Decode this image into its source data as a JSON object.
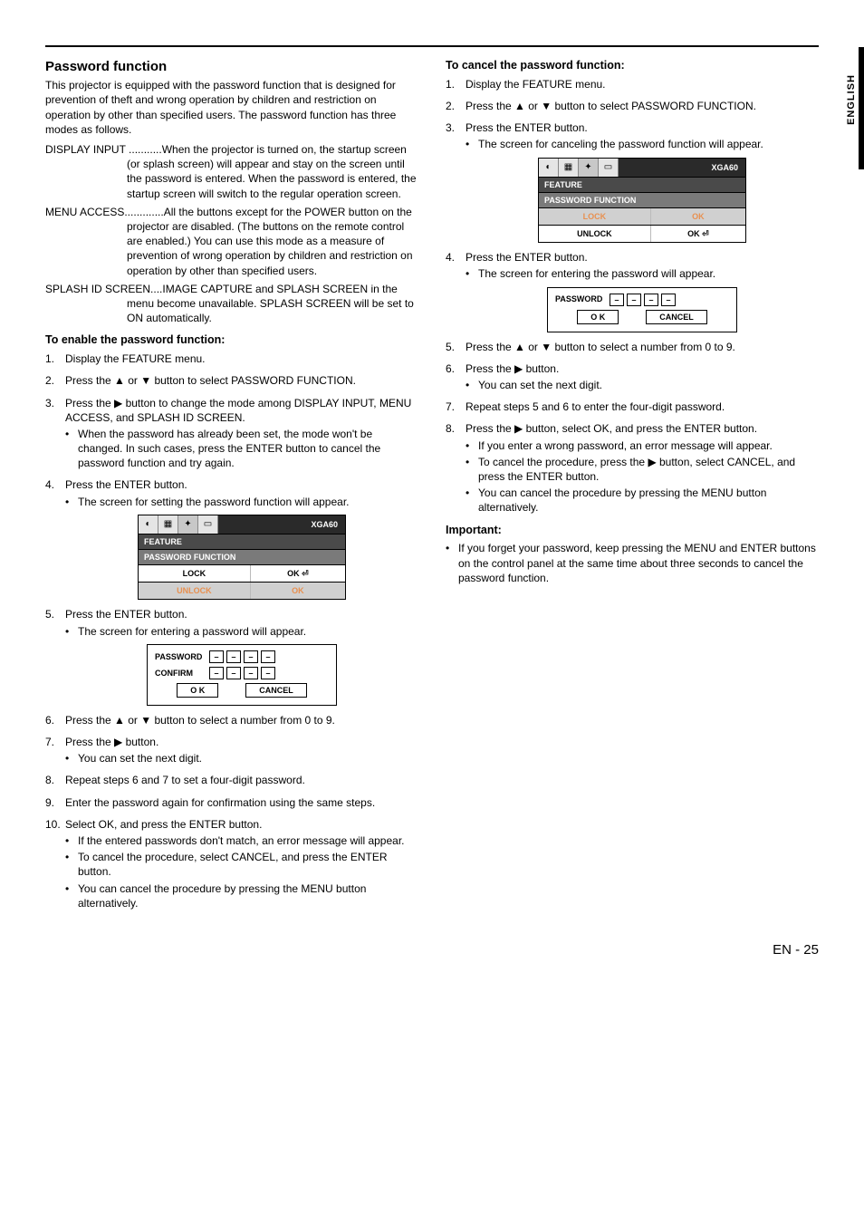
{
  "sideTab": "ENGLISH",
  "footer": "EN - 25",
  "left": {
    "heading": "Password function",
    "intro": "This projector is equipped with the password function that is designed for prevention of theft and wrong operation by children and restriction on operation by other than specified users. The password function has three modes as follows.",
    "mode1": "DISPLAY INPUT ...........When the projector is turned on, the startup screen (or splash screen) will appear and stay on the screen until the password is entered. When the password is entered, the startup screen will switch to the regular operation screen.",
    "mode2": "MENU ACCESS.............All the buttons except for the POWER button on the projector are disabled. (The buttons on the remote control are enabled.) You can use this mode as a measure of prevention of wrong operation by children and restriction on operation by other than specified users.",
    "mode3": "SPLASH ID SCREEN....IMAGE CAPTURE and SPLASH SCREEN in the menu become unavailable. SPLASH SCREEN will be set to ON automatically.",
    "enableTitle": "To enable the password function:",
    "s1": "Display the FEATURE menu.",
    "s2": "Press the ▲ or ▼ button to select PASSWORD FUNCTION.",
    "s3": "Press the ▶ button to change the mode among DISPLAY INPUT, MENU ACCESS, and SPLASH ID SCREEN.",
    "s3b": "When the password has already been set, the mode won't be changed. In such cases, press the ENTER button to cancel the password function and try again.",
    "s4": "Press the ENTER button.",
    "s4b": "The screen for setting the password function will appear.",
    "s5": "Press the ENTER button.",
    "s5b": "The screen for entering a password will appear.",
    "s6": "Press the ▲ or ▼ button to select a number from 0 to 9.",
    "s7": "Press the ▶ button.",
    "s7b": "You can set the next digit.",
    "s8": "Repeat steps 6 and 7 to set a four-digit password.",
    "s9": "Enter the password again for confirmation using the same steps.",
    "s10": "Select OK, and press the ENTER button.",
    "s10a": "If the entered passwords don't match, an error message will appear.",
    "s10b": "To cancel the procedure, select CANCEL, and press the ENTER button.",
    "s10c": "You can cancel the procedure by pressing the MENU button alternatively."
  },
  "right": {
    "cancelTitle": "To cancel the password function:",
    "c1": "Display the FEATURE menu.",
    "c2": "Press the ▲ or ▼ button to select PASSWORD FUNCTION.",
    "c3": "Press the ENTER button.",
    "c3b": "The screen for canceling the password function will appear.",
    "c4": "Press the ENTER button.",
    "c4b": "The screen for entering the password will appear.",
    "c5": "Press the ▲ or ▼ button to select a number from 0 to 9.",
    "c6": "Press the ▶ button.",
    "c6b": "You can set the next digit.",
    "c7": "Repeat steps 5 and 6 to enter the four-digit password.",
    "c8": "Press the ▶ button, select OK, and press the ENTER button.",
    "c8a": "If you enter a wrong password, an error message will appear.",
    "c8b": "To cancel the procedure, press the ▶ button, select CANCEL, and press the ENTER button.",
    "c8c": "You can cancel the procedure by pressing the MENU button alternatively.",
    "impTitle": "Important:",
    "imp1": "If you forget your password, keep pressing the MENU and ENTER buttons on the control panel at the same time about three seconds to cancel the password function."
  },
  "menu": {
    "signal": "XGA60",
    "feature": "FEATURE",
    "section": "PASSWORD FUNCTION",
    "lock": "LOCK",
    "unlock": "UNLOCK",
    "ok": "OK",
    "okcheck": "OK ⏎"
  },
  "pw": {
    "password": "PASSWORD",
    "confirm": "CONFIRM",
    "ok": "O K",
    "cancel": "CANCEL",
    "dash": "–"
  }
}
